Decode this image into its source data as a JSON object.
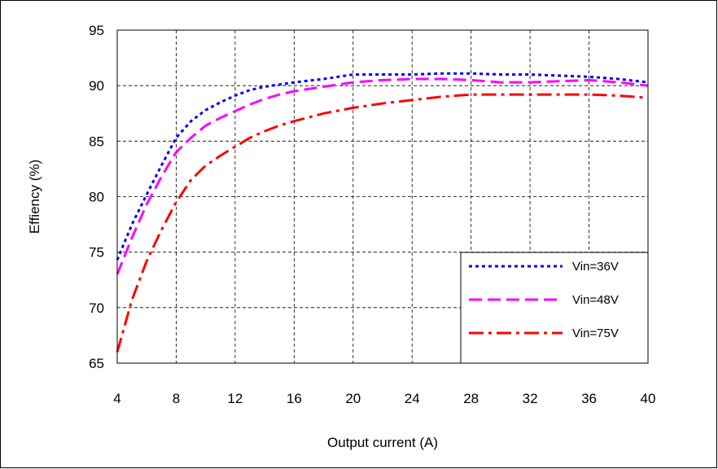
{
  "chart_data": {
    "type": "line",
    "title": "",
    "xlabel": "Output current (A)",
    "ylabel": "Effiency (%)",
    "xlim": [
      4,
      40
    ],
    "ylim": [
      65,
      95
    ],
    "xticks": [
      "4",
      "8",
      "12",
      "16",
      "20",
      "24",
      "28",
      "32",
      "36",
      "40"
    ],
    "yticks": [
      "65",
      "70",
      "75",
      "80",
      "85",
      "90",
      "95"
    ],
    "grid": true,
    "legend_position": "right",
    "series": [
      {
        "name": "Vin=36V",
        "color": "#0000ff",
        "style": "dotted",
        "x": [
          4,
          5,
          6,
          7,
          8,
          9,
          10,
          11,
          12,
          13,
          14,
          15,
          16,
          18,
          20,
          22,
          24,
          26,
          28,
          30,
          32,
          34,
          36,
          38,
          40
        ],
        "y": [
          74.3,
          77.5,
          80.2,
          82.8,
          85.3,
          86.8,
          87.8,
          88.5,
          89.1,
          89.6,
          89.9,
          90.1,
          90.3,
          90.6,
          91.0,
          91.0,
          91.0,
          91.1,
          91.1,
          91.0,
          91.0,
          90.9,
          90.8,
          90.6,
          90.3
        ]
      },
      {
        "name": "Vin=48V",
        "color": "#ff00ff",
        "style": "dashed",
        "x": [
          4,
          5,
          6,
          7,
          8,
          9,
          10,
          11,
          12,
          13,
          14,
          15,
          16,
          18,
          20,
          22,
          24,
          26,
          28,
          30,
          32,
          34,
          36,
          38,
          40
        ],
        "y": [
          73.0,
          76.3,
          79.3,
          81.8,
          84.0,
          85.3,
          86.4,
          87.1,
          87.7,
          88.3,
          88.8,
          89.2,
          89.5,
          89.9,
          90.3,
          90.5,
          90.6,
          90.6,
          90.5,
          90.3,
          90.3,
          90.4,
          90.5,
          90.3,
          90.0
        ]
      },
      {
        "name": "Vin=75V",
        "color": "#ff0000",
        "style": "dashdot",
        "x": [
          4,
          5,
          6,
          7,
          8,
          9,
          10,
          11,
          12,
          13,
          14,
          15,
          16,
          18,
          20,
          22,
          24,
          26,
          28,
          30,
          32,
          34,
          36,
          38,
          40
        ],
        "y": [
          66.0,
          70.7,
          74.2,
          77.0,
          79.5,
          81.5,
          82.8,
          83.7,
          84.5,
          85.3,
          85.9,
          86.4,
          86.8,
          87.5,
          88.0,
          88.4,
          88.7,
          89.0,
          89.2,
          89.2,
          89.2,
          89.2,
          89.2,
          89.1,
          88.9
        ]
      }
    ]
  }
}
